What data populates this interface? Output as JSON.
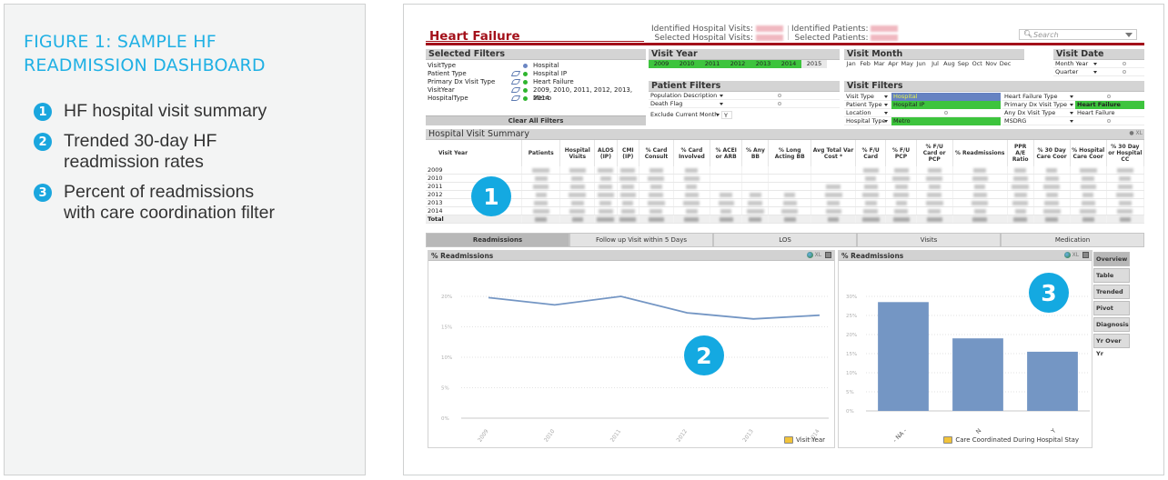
{
  "caption": {
    "title_line1": "FIGURE 1: SAMPLE HF",
    "title_line2": "READMISSION DASHBOARD",
    "items": [
      {
        "num": "1",
        "text_line1": "HF hospital visit summary",
        "text_line2": ""
      },
      {
        "num": "2",
        "text_line1": "Trended 30-day HF",
        "text_line2": "readmission rates"
      },
      {
        "num": "3",
        "text_line1": "Percent of readmissions",
        "text_line2": "with care coordination filter"
      }
    ]
  },
  "colors": {
    "brand_red": "#a3101a",
    "callout_cyan": "#14a9e1",
    "selected_green": "#3dc43d",
    "selected_blue": "#6582c2",
    "series_blue": "#7496c4"
  },
  "header": {
    "app_title": "Heart Failure",
    "identified_visits_label": "Identified Hospital Visits:",
    "selected_visits_label": "Selected Hospital Visits:",
    "identified_patients_label": "Identified Patients:",
    "selected_patients_label": "Selected Patients:",
    "search_placeholder": "Search"
  },
  "selected_filters": {
    "title": "Selected Filters",
    "rows": [
      {
        "label": "VisitType",
        "value": "Hospital"
      },
      {
        "label": "Patient Type",
        "value": "Hospital IP"
      },
      {
        "label": "Primary Dx Visit Type",
        "value": "Heart Failure"
      },
      {
        "label": "VisitYear",
        "value": "2009, 2010, 2011, 2012, 2013, 2014"
      },
      {
        "label": "HospitalType",
        "value": "Metro"
      }
    ],
    "clear_button": "Clear All Filters"
  },
  "visit_year": {
    "title": "Visit Year",
    "years": [
      "2009",
      "2010",
      "2011",
      "2012",
      "2013",
      "2014",
      "2015"
    ],
    "selected": [
      "2009",
      "2010",
      "2011",
      "2012",
      "2013",
      "2014"
    ]
  },
  "patient_filters": {
    "title": "Patient Filters",
    "rows": [
      {
        "label": "Population Description"
      },
      {
        "label": "Death Flag"
      }
    ],
    "exclude_label": "Exclude Current Month",
    "exclude_value": "Y"
  },
  "visit_month": {
    "title": "Visit Month",
    "months": [
      "Jan",
      "Feb",
      "Mar",
      "Apr",
      "May",
      "Jun",
      "Jul",
      "Aug",
      "Sep",
      "Oct",
      "Nov",
      "Dec"
    ]
  },
  "visit_date": {
    "title": "Visit Date",
    "rows": [
      {
        "label": "Month Year"
      },
      {
        "label": "Quarter"
      }
    ]
  },
  "visit_filters": {
    "title": "Visit Filters",
    "left": [
      {
        "label": "Visit Type",
        "value": "Hospital"
      },
      {
        "label": "Patient Type",
        "value": "Hospital IP"
      },
      {
        "label": "Location",
        "value": ""
      },
      {
        "label": "Hospital Type",
        "value": "Metro"
      }
    ],
    "right": [
      {
        "label": "Heart Failure Type",
        "value": ""
      },
      {
        "label": "Primary Dx Visit Type",
        "value": "Heart Failure"
      },
      {
        "label": "Any Dx Visit Type",
        "value": "Heart Failure"
      },
      {
        "label": "MSDRG",
        "value": ""
      }
    ]
  },
  "summary_table": {
    "title": "Hospital Visit Summary",
    "columns": [
      "Visit Year",
      "Patients",
      "Hospital Visits",
      "ALOS (IP)",
      "CMI (IP)",
      "% Card Consult",
      "% Card Involved",
      "% ACEI or ARB",
      "% Any BB",
      "% Long Acting BB",
      "Avg Total Var Cost *",
      "% F/U Card",
      "% F/U PCP",
      "% F/U Card or PCP",
      "% Readmissions",
      "PPR A/E Ratio",
      "% 30 Day Care Coor",
      "% Hospital Care Coor",
      "% 30 Day or Hospital CC"
    ],
    "rows": [
      "2009",
      "2010",
      "2011",
      "2012",
      "2013",
      "2014"
    ],
    "total_label": "Total",
    "values_note": "cell values obscured (blurred) in source"
  },
  "tabs": [
    "Readmissions",
    "Follow up Visit within 5 Days",
    "LOS",
    "Visits",
    "Medication"
  ],
  "active_tab": "Readmissions",
  "left_chart": {
    "title": "% Readmissions",
    "dimension_label": "Visit Year",
    "tools_label": "XL"
  },
  "right_chart": {
    "title": "% Readmissions",
    "dimension_label": "Care Coordinated During Hospital Stay",
    "tools_label": "XL"
  },
  "side_tabs": [
    "Overview",
    "Table",
    "Trended",
    "Pivot",
    "Diagnosis",
    "Yr Over Yr"
  ],
  "active_side_tab": "Overview",
  "callouts": [
    "1",
    "2",
    "3"
  ],
  "chart_data": [
    {
      "type": "line",
      "title": "% Readmissions",
      "xlabel": "Visit Year",
      "ylabel": "",
      "categories": [
        "2009",
        "2010",
        "2011",
        "2012",
        "2013",
        "2014"
      ],
      "series": [
        {
          "name": "% Readmissions",
          "values": [
            19.8,
            18.6,
            20.0,
            17.3,
            16.3,
            16.9
          ]
        }
      ],
      "yticks": [
        "0%",
        "5%",
        "10%",
        "15%",
        "20%"
      ],
      "ylim": [
        0,
        20
      ],
      "grid": true
    },
    {
      "type": "bar",
      "title": "% Readmissions",
      "xlabel": "Care Coordinated During Hospital Stay",
      "ylabel": "",
      "categories": [
        "- NA -",
        "N",
        "Y"
      ],
      "values": [
        28.5,
        19.0,
        15.5
      ],
      "yticks": [
        "0%",
        "5%",
        "10%",
        "15%",
        "20%",
        "25%",
        "30%"
      ],
      "ylim": [
        0,
        30
      ],
      "grid": true
    }
  ]
}
